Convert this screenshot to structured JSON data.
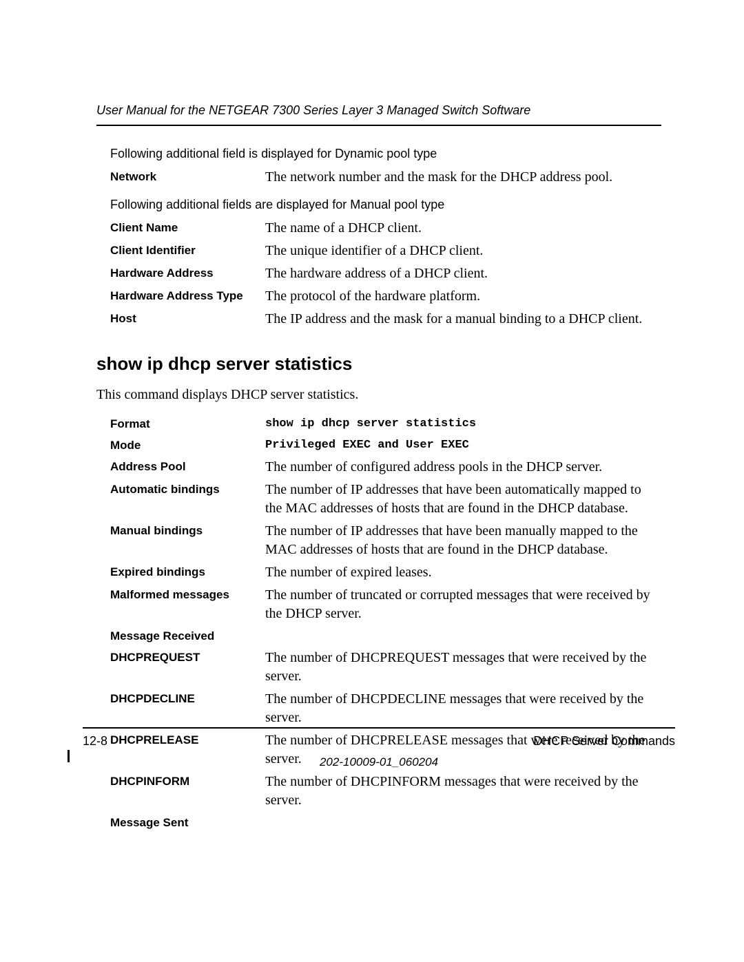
{
  "header": {
    "title": "User Manual for the NETGEAR 7300 Series Layer 3 Managed Switch Software"
  },
  "intro1": "Following additional field is displayed for Dynamic pool type",
  "dynamic": {
    "network_label": "Network",
    "network_desc": "The network number and the mask for the DHCP address pool."
  },
  "intro2": "Following additional fields are displayed for Manual pool type",
  "manual": {
    "clientname_label": "Client Name",
    "clientname_desc": "The name of a DHCP client.",
    "clientid_label": "Client Identifier",
    "clientid_desc": "The unique identifier of a DHCP client.",
    "hwaddr_label": "Hardware Address",
    "hwaddr_desc": "The hardware address of a DHCP client.",
    "hwaddrtype_label": "Hardware Address Type",
    "hwaddrtype_desc": "The protocol of the hardware platform.",
    "host_label": "Host",
    "host_desc": "The IP address and the mask for a manual binding to a DHCP client."
  },
  "section": {
    "heading": "show ip dhcp server statistics",
    "subtext": "This command displays DHCP server statistics."
  },
  "stats": {
    "format_label": "Format",
    "format_desc": "show ip dhcp server statistics",
    "mode_label": "Mode",
    "mode_desc": "Privileged EXEC and User EXEC",
    "addrpool_label": "Address Pool",
    "addrpool_desc": "The number of configured address pools in the DHCP server.",
    "autobind_label": "Automatic bindings",
    "autobind_desc": "The number of IP addresses that have been automatically mapped to the MAC addresses of hosts that are found in the DHCP database.",
    "manbind_label": "Manual bindings",
    "manbind_desc": "The number of IP addresses that have been manually mapped to the MAC addresses of hosts that are found in the DHCP database.",
    "expbind_label": "Expired bindings",
    "expbind_desc": "The number of expired leases.",
    "malform_label": "Malformed messages",
    "malform_desc": "The number of truncated or corrupted messages that were received by the DHCP server.",
    "msgrecv_label": "Message Received",
    "dhcpreq_label": "DHCPREQUEST",
    "dhcpreq_desc": "The number of DHCPREQUEST messages that were received by the server.",
    "dhcpdec_label": "DHCPDECLINE",
    "dhcpdec_desc": "The number of DHCPDECLINE messages that were received by the server.",
    "dhcprel_label": "DHCPRELEASE",
    "dhcprel_desc": "The number of DHCPRELEASE messages that were received by the server.",
    "dhcpinf_label": "DHCPINFORM",
    "dhcpinf_desc": "The number of DHCPINFORM messages that were received by the server.",
    "msgsent_label": "Message Sent"
  },
  "footer": {
    "pagenum": "12-8",
    "chapter": "DHCP Server Commands",
    "docnum": "202-10009-01_060204"
  }
}
